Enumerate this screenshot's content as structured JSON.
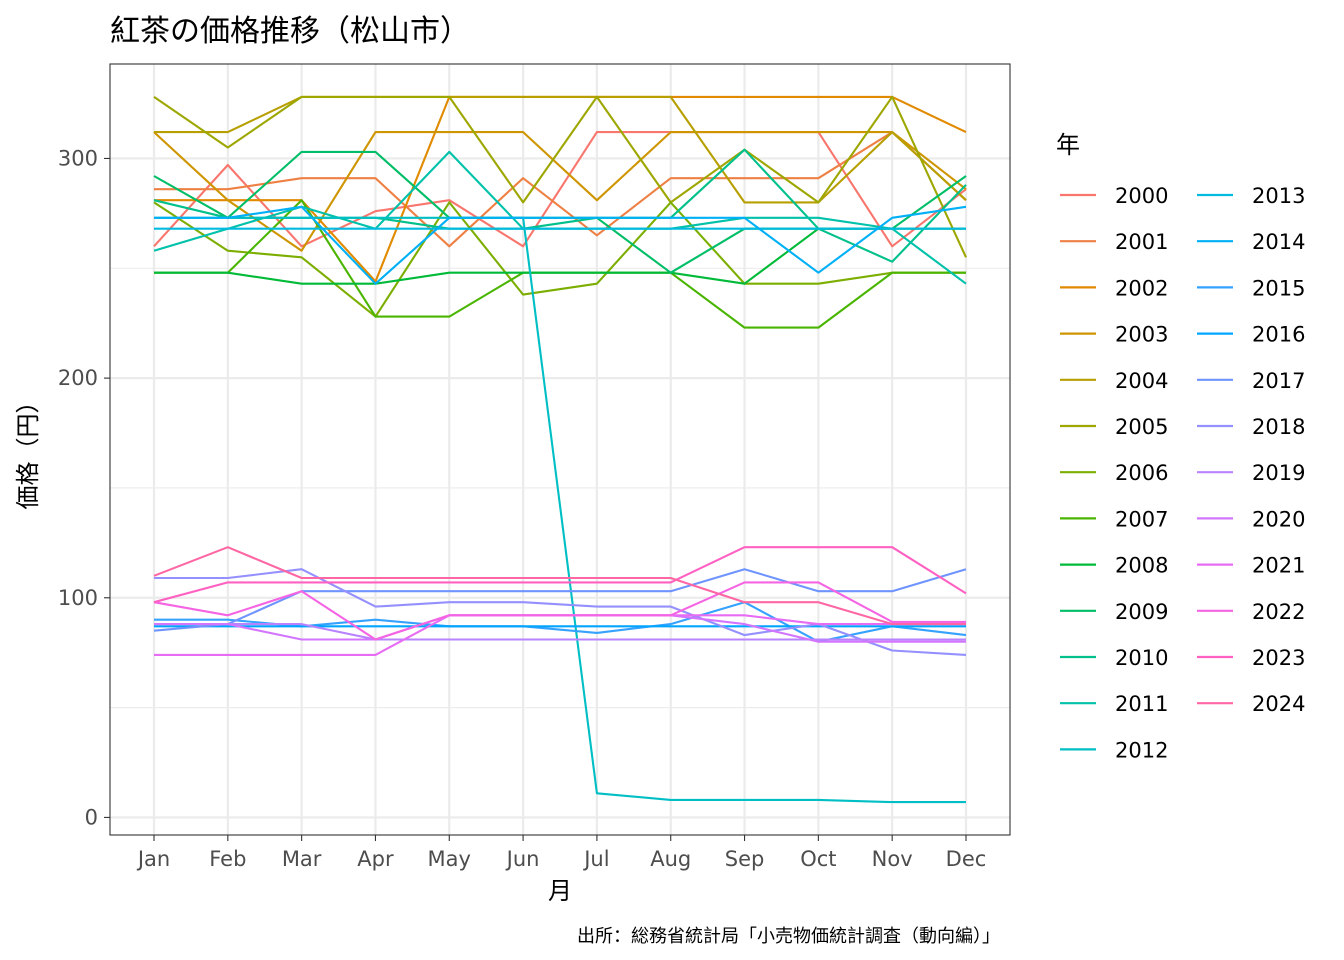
{
  "chart_data": {
    "type": "line",
    "title": "紅茶の価格推移（松山市）",
    "xlabel": "月",
    "ylabel": "価格（円）",
    "caption": "出所：総務省統計局「小売物価統計調査（動向編）」",
    "legend_title": "年",
    "legend_position": "right",
    "grid": true,
    "ylim": [
      -8,
      343
    ],
    "y_ticks": [
      "0",
      "100",
      "200",
      "300"
    ],
    "y_tick_values": [
      0,
      100,
      200,
      300
    ],
    "categories": [
      "Jan",
      "Feb",
      "Mar",
      "Apr",
      "May",
      "Jun",
      "Jul",
      "Aug",
      "Sep",
      "Oct",
      "Nov",
      "Dec"
    ],
    "series": [
      {
        "name": "2000",
        "color": "#F8766D",
        "values": [
          260,
          297,
          260,
          276,
          281,
          260,
          312,
          312,
          312,
          312,
          260,
          286
        ]
      },
      {
        "name": "2001",
        "color": "#EE8044",
        "values": [
          286,
          286,
          291,
          291,
          260,
          291,
          265,
          291,
          291,
          291,
          312,
          281
        ]
      },
      {
        "name": "2002",
        "color": "#E18A00",
        "values": [
          281,
          281,
          281,
          244,
          328,
          328,
          328,
          328,
          328,
          328,
          328,
          312
        ]
      },
      {
        "name": "2003",
        "color": "#CE9500",
        "values": [
          312,
          281,
          258,
          312,
          312,
          312,
          281,
          312,
          312,
          312,
          312,
          286
        ]
      },
      {
        "name": "2004",
        "color": "#B79F00",
        "values": [
          312,
          312,
          328,
          328,
          328,
          328,
          328,
          328,
          280,
          280,
          312,
          281
        ]
      },
      {
        "name": "2005",
        "color": "#9DA700",
        "values": [
          328,
          305,
          328,
          328,
          328,
          280,
          328,
          280,
          304,
          280,
          328,
          255
        ]
      },
      {
        "name": "2006",
        "color": "#7CAE00",
        "values": [
          280,
          258,
          255,
          228,
          280,
          238,
          243,
          280,
          243,
          243,
          248,
          248
        ]
      },
      {
        "name": "2007",
        "color": "#49B500",
        "values": [
          248,
          248,
          281,
          228,
          228,
          248,
          248,
          248,
          223,
          223,
          248,
          248
        ]
      },
      {
        "name": "2008",
        "color": "#00BA38",
        "values": [
          248,
          248,
          243,
          243,
          248,
          248,
          248,
          248,
          243,
          268,
          268,
          268
        ]
      },
      {
        "name": "2009",
        "color": "#00BE67",
        "values": [
          292,
          273,
          303,
          303,
          273,
          273,
          273,
          248,
          268,
          268,
          268,
          292
        ]
      },
      {
        "name": "2010",
        "color": "#00C08B",
        "values": [
          281,
          273,
          273,
          273,
          268,
          268,
          273,
          273,
          304,
          268,
          253,
          288
        ]
      },
      {
        "name": "2011",
        "color": "#00C1A9",
        "values": [
          258,
          268,
          278,
          268,
          303,
          268,
          268,
          268,
          273,
          273,
          268,
          243
        ]
      },
      {
        "name": "2012",
        "color": "#00BFC4",
        "values": [
          273,
          273,
          273,
          273,
          273,
          273,
          11,
          8,
          8,
          8,
          7,
          7
        ]
      },
      {
        "name": "2013",
        "color": "#00BAE0",
        "values": [
          268,
          268,
          268,
          268,
          268,
          268,
          268,
          268,
          268,
          268,
          268,
          268
        ]
      },
      {
        "name": "2014",
        "color": "#00B0F6",
        "values": [
          273,
          273,
          278,
          243,
          273,
          273,
          273,
          273,
          273,
          248,
          273,
          278
        ]
      },
      {
        "name": "2015",
        "color": "#35A2FF",
        "values": [
          90,
          90,
          87,
          90,
          87,
          87,
          84,
          88,
          98,
          80,
          87,
          83
        ]
      },
      {
        "name": "2016",
        "color": "#00A5FF",
        "values": [
          87,
          87,
          87,
          87,
          87,
          87,
          87,
          87,
          87,
          87,
          87,
          87
        ]
      },
      {
        "name": "2017",
        "color": "#6F94FF",
        "values": [
          85,
          88,
          103,
          103,
          103,
          103,
          103,
          103,
          113,
          103,
          103,
          113
        ]
      },
      {
        "name": "2018",
        "color": "#9590FF",
        "values": [
          109,
          109,
          113,
          96,
          98,
          98,
          96,
          96,
          83,
          88,
          76,
          74
        ]
      },
      {
        "name": "2019",
        "color": "#B983FF",
        "values": [
          88,
          88,
          88,
          81,
          81,
          81,
          81,
          81,
          81,
          81,
          81,
          81
        ]
      },
      {
        "name": "2020",
        "color": "#D376FF",
        "values": [
          88,
          88,
          81,
          81,
          92,
          92,
          92,
          92,
          88,
          80,
          80,
          80
        ]
      },
      {
        "name": "2021",
        "color": "#E76BF3",
        "values": [
          74,
          74,
          74,
          74,
          92,
          92,
          92,
          92,
          92,
          88,
          88,
          88
        ]
      },
      {
        "name": "2022",
        "color": "#F564E3",
        "values": [
          98,
          92,
          103,
          81,
          92,
          92,
          92,
          92,
          107,
          107,
          89,
          89
        ]
      },
      {
        "name": "2023",
        "color": "#FF61C3",
        "values": [
          98,
          107,
          107,
          107,
          107,
          107,
          107,
          107,
          123,
          123,
          123,
          102
        ]
      },
      {
        "name": "2024",
        "color": "#FF67A4",
        "values": [
          110,
          123,
          109,
          109,
          109,
          109,
          109,
          109,
          98,
          98,
          88,
          88
        ]
      }
    ]
  }
}
